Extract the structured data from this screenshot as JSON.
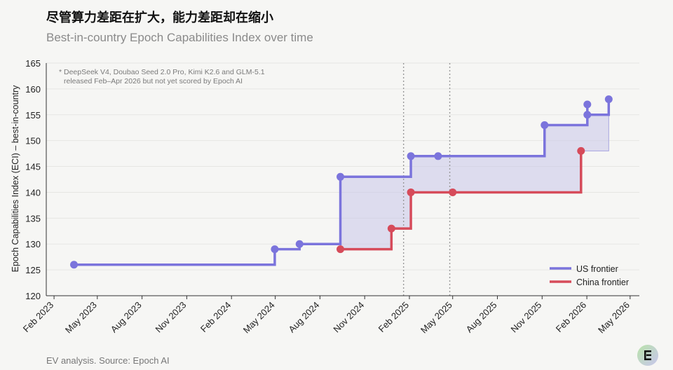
{
  "header": {
    "title": "尽管算力差距在扩大，能力差距却在缩小",
    "subtitle": "Best-in-country Epoch Capabilities Index over time"
  },
  "footer": {
    "source": "EV analysis. Source: Epoch AI"
  },
  "chart_data": {
    "type": "line",
    "step": true,
    "ylabel": "Epoch Capabilities Index (ECI) – best-in-country",
    "xlabel": "",
    "ylim": [
      120,
      165
    ],
    "yticks": [
      120,
      125,
      130,
      135,
      140,
      145,
      150,
      155,
      160,
      165
    ],
    "xlim": [
      "2023-01-16",
      "2026-05-20"
    ],
    "xticks": [
      {
        "date": "2023-02-01",
        "label": "Feb 2023"
      },
      {
        "date": "2023-05-01",
        "label": "May 2023"
      },
      {
        "date": "2023-08-01",
        "label": "Aug 2023"
      },
      {
        "date": "2023-11-01",
        "label": "Nov 2023"
      },
      {
        "date": "2024-02-01",
        "label": "Feb 2024"
      },
      {
        "date": "2024-05-01",
        "label": "May 2024"
      },
      {
        "date": "2024-08-01",
        "label": "Aug 2024"
      },
      {
        "date": "2024-11-01",
        "label": "Nov 2024"
      },
      {
        "date": "2025-02-01",
        "label": "Feb 2025"
      },
      {
        "date": "2025-05-01",
        "label": "May 2025"
      },
      {
        "date": "2025-08-01",
        "label": "Aug 2025"
      },
      {
        "date": "2025-11-01",
        "label": "Nov 2025"
      },
      {
        "date": "2026-02-01",
        "label": "Feb 2026"
      },
      {
        "date": "2026-05-01",
        "label": "May 2026"
      }
    ],
    "vlines": [
      "2025-01-20",
      "2025-04-25"
    ],
    "grid": true,
    "legend_position": "bottom-right",
    "annotation": [
      "* DeepSeek V4, Doubao Seed 2.0 Pro, Kimi K2.6 and GLM-5.1",
      "released Feb–Apr 2026 but not yet scored by Epoch AI"
    ],
    "series": [
      {
        "name": "US frontier",
        "color": "#7b74dc",
        "points": [
          {
            "x": "2023-03-14",
            "y": 126
          },
          {
            "x": "2024-04-30",
            "y": 129
          },
          {
            "x": "2024-06-20",
            "y": 130
          },
          {
            "x": "2024-09-12",
            "y": 143
          },
          {
            "x": "2025-02-04",
            "y": 147
          },
          {
            "x": "2025-04-01",
            "y": 147
          },
          {
            "x": "2025-11-06",
            "y": 153
          },
          {
            "x": "2026-02-02",
            "y": 157
          },
          {
            "x": "2026-02-02",
            "y": 155
          },
          {
            "x": "2026-03-18",
            "y": 158
          }
        ]
      },
      {
        "name": "China frontier",
        "color": "#d64b5a",
        "points": [
          {
            "x": "2024-09-12",
            "y": 129
          },
          {
            "x": "2024-12-26",
            "y": 133
          },
          {
            "x": "2025-02-04",
            "y": 140
          },
          {
            "x": "2025-05-01",
            "y": 140
          },
          {
            "x": "2026-01-20",
            "y": 148
          }
        ]
      }
    ],
    "fill_color": "#c9c6ea"
  }
}
